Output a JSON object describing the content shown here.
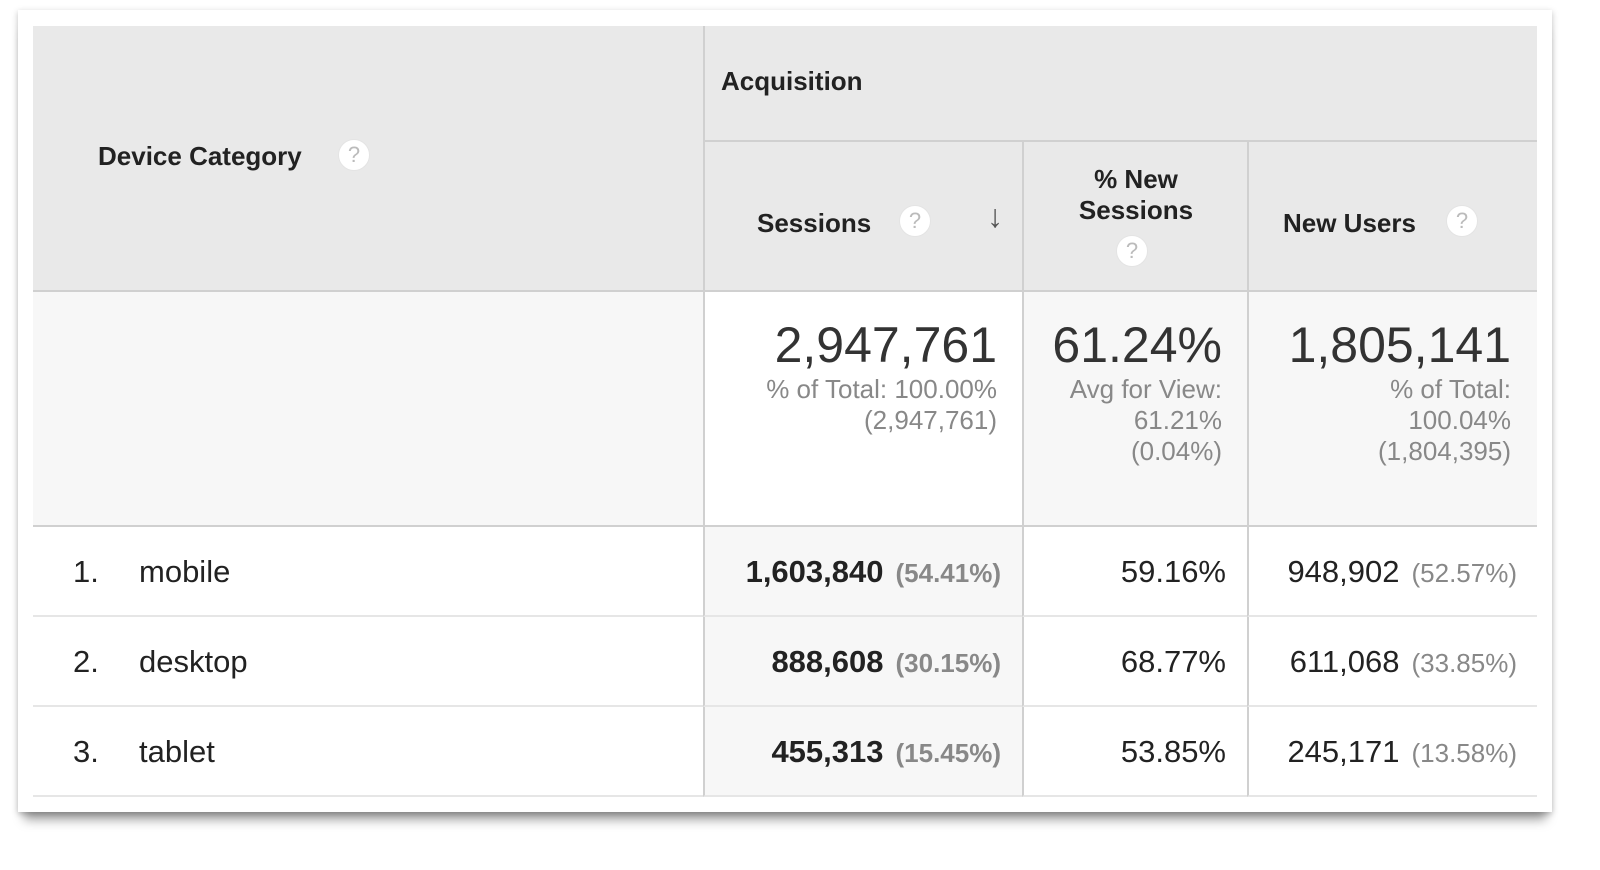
{
  "header": {
    "device_category": "Device Category",
    "group": "Acquisition",
    "sessions": "Sessions",
    "new_sessions_line1": "% New",
    "new_sessions_line2": "Sessions",
    "new_users": "New Users",
    "help": "?",
    "sort_icon": "arrow-down-icon"
  },
  "totals": {
    "sessions": {
      "value": "2,947,761",
      "line1": "% of Total: 100.00%",
      "line2": "(2,947,761)"
    },
    "new_sessions": {
      "value": "61.24%",
      "line1": "Avg for View:",
      "line2": "61.21%",
      "line3": "(0.04%)"
    },
    "new_users": {
      "value": "1,805,141",
      "line1": "% of Total:",
      "line2": "100.04%",
      "line3": "(1,804,395)"
    }
  },
  "rows": [
    {
      "index": "1.",
      "device": "mobile",
      "sessions": "1,603,840",
      "sessions_pct": "(54.41%)",
      "new_sessions": "59.16%",
      "new_users": "948,902",
      "new_users_pct": "(52.57%)"
    },
    {
      "index": "2.",
      "device": "desktop",
      "sessions": "888,608",
      "sessions_pct": "(30.15%)",
      "new_sessions": "68.77%",
      "new_users": "611,068",
      "new_users_pct": "(33.85%)"
    },
    {
      "index": "3.",
      "device": "tablet",
      "sessions": "455,313",
      "sessions_pct": "(15.45%)",
      "new_sessions": "53.85%",
      "new_users": "245,171",
      "new_users_pct": "(13.58%)"
    }
  ]
}
